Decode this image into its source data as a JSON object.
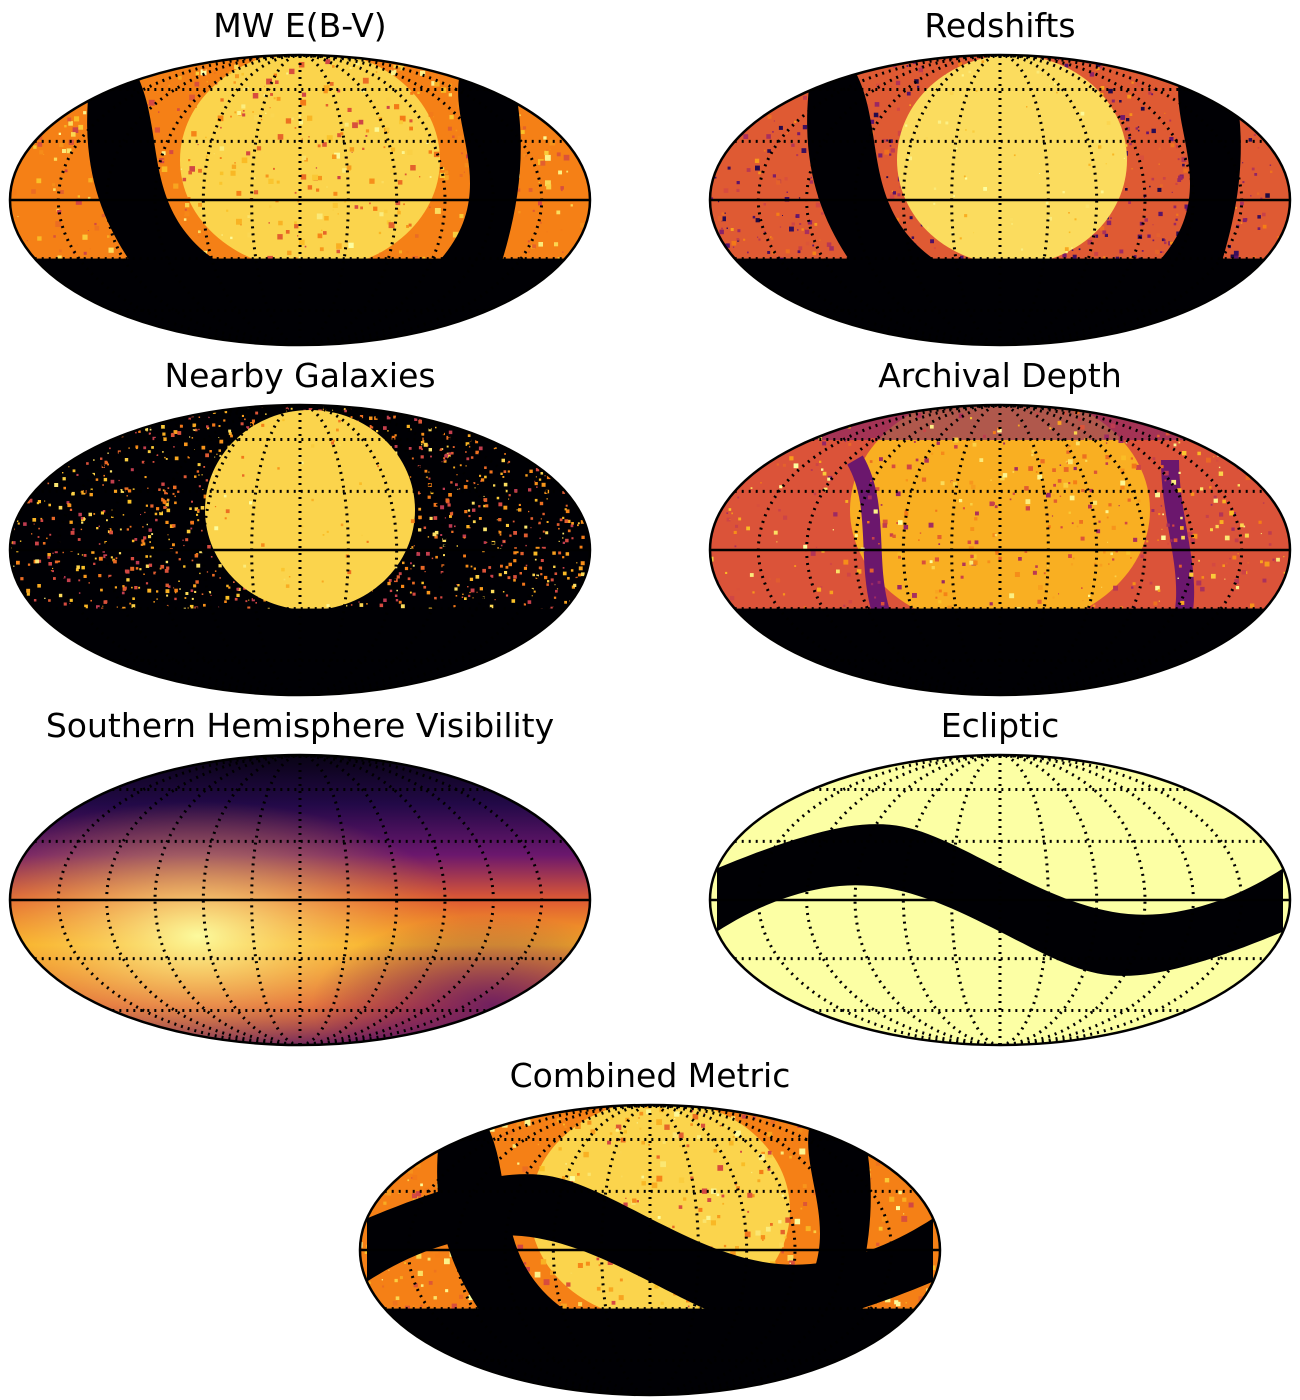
{
  "figure": {
    "panels": [
      {
        "id": "mw",
        "title": "MW E(B-V)",
        "kind": "galactic_dust"
      },
      {
        "id": "redshifts",
        "title": "Redshifts",
        "kind": "redshift_coverage"
      },
      {
        "id": "galaxies",
        "title": "Nearby Galaxies",
        "kind": "speckled_galaxies"
      },
      {
        "id": "archival",
        "title": "Archival Depth",
        "kind": "archival_depth"
      },
      {
        "id": "south",
        "title": "Southern Hemisphere Visibility",
        "kind": "visibility_gradient"
      },
      {
        "id": "ecliptic",
        "title": "Ecliptic",
        "kind": "ecliptic_mask"
      },
      {
        "id": "combined",
        "title": "Combined Metric",
        "kind": "combined"
      }
    ]
  },
  "chart_data": {
    "type": "heatmap",
    "projection": "mollweide",
    "colormap": "inferno",
    "colors": {
      "dark": "#000004",
      "purple": "#56106e",
      "magenta": "#bb3754",
      "orange": "#f98e09",
      "yellow": "#fcffa4",
      "ecliptic_fill": "#fcffa4",
      "grid": "#000000"
    },
    "graticule": {
      "meridian_step_deg": 30,
      "parallel_step_deg": 30,
      "style": "dotted",
      "equator": "solid"
    },
    "dec_cutoff_deg": -30,
    "maps": [
      {
        "title": "MW E(B-V)",
        "masked_below_dec": -30
      },
      {
        "title": "Redshifts",
        "masked_below_dec": -30
      },
      {
        "title": "Nearby Galaxies",
        "masked_below_dec": -30
      },
      {
        "title": "Archival Depth",
        "masked_below_dec": -30
      },
      {
        "title": "Southern Hemisphere Visibility",
        "masked_below_dec": null
      },
      {
        "title": "Ecliptic",
        "masked_below_dec": null
      },
      {
        "title": "Combined Metric",
        "masked_below_dec": -30
      }
    ]
  }
}
